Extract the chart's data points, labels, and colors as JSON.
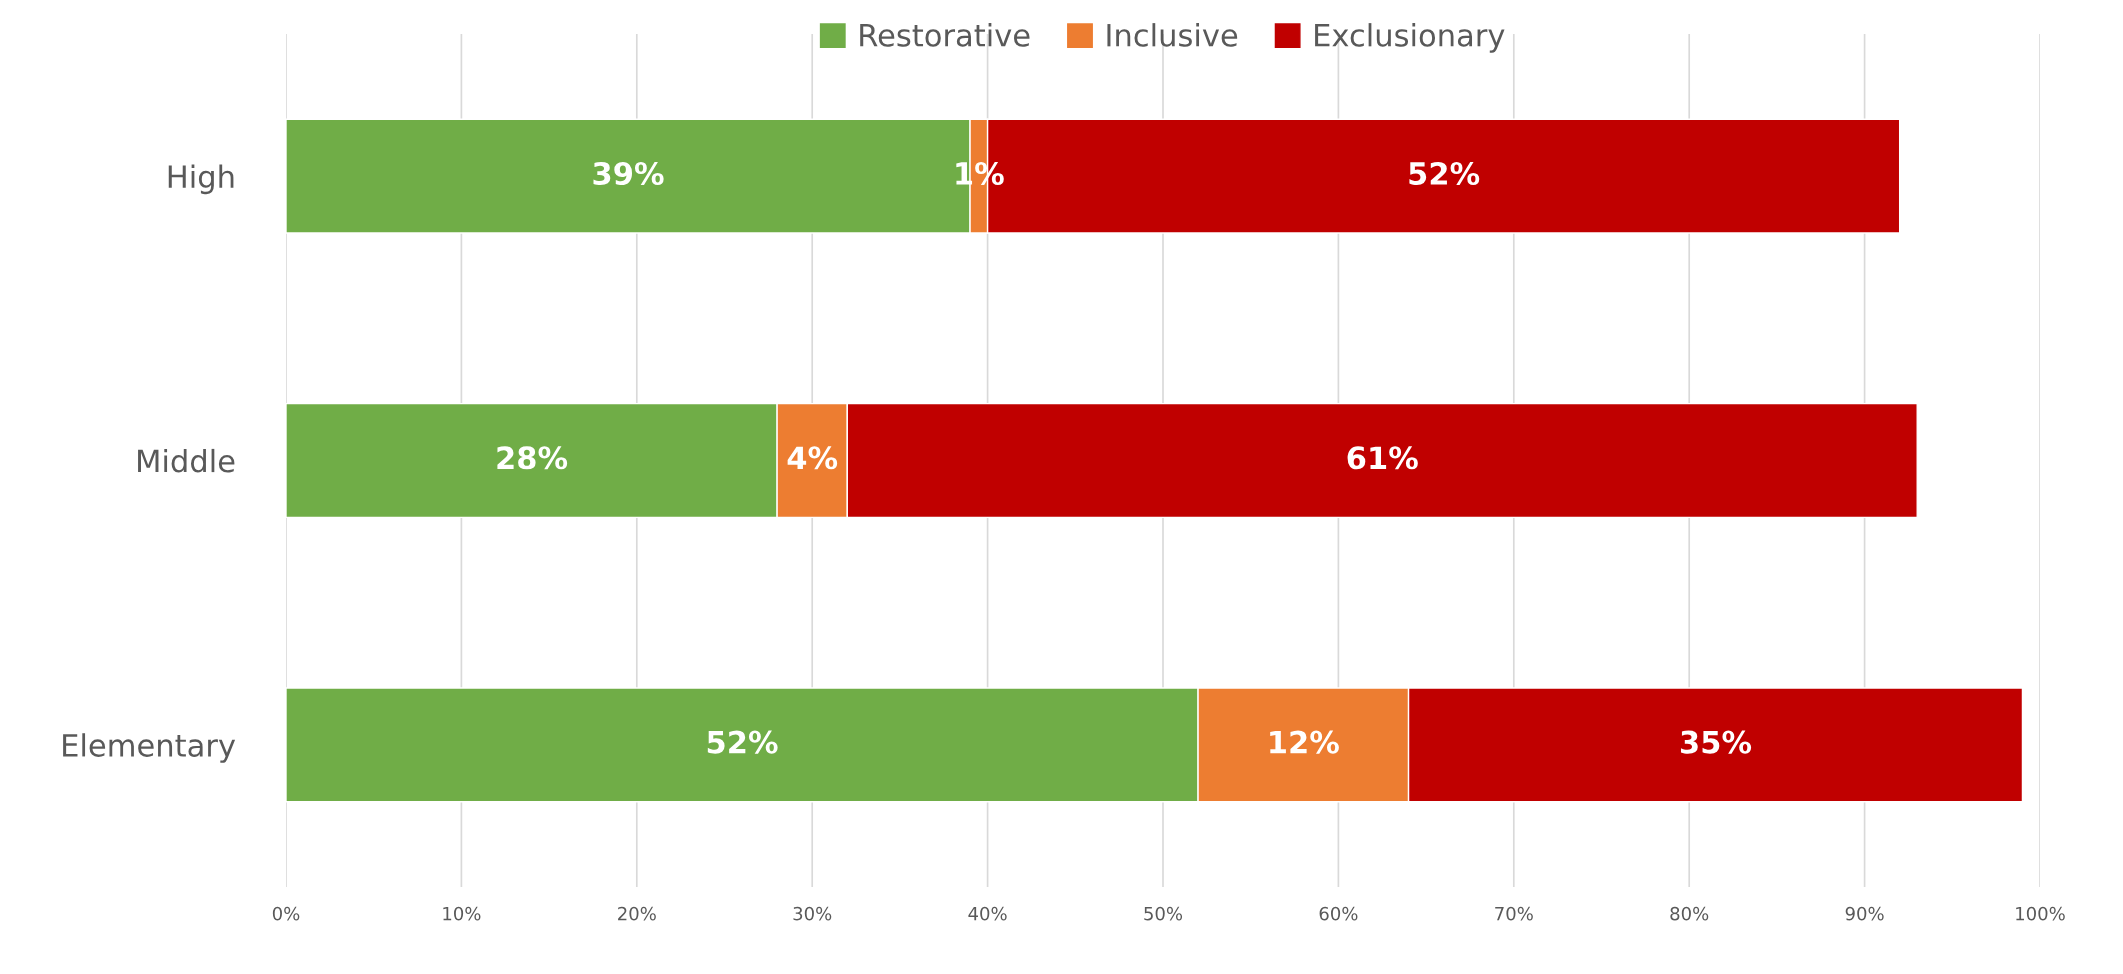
{
  "chart_data": {
    "type": "bar",
    "orientation": "horizontal",
    "stacked": true,
    "categories": [
      "High",
      "Middle",
      "Elementary"
    ],
    "series": [
      {
        "name": "Restorative",
        "color": "#70ad47",
        "values": [
          39,
          28,
          52
        ],
        "value_labels": [
          "39%",
          "28%",
          "52%"
        ]
      },
      {
        "name": "Inclusive",
        "color": "#ed7d31",
        "values": [
          1,
          4,
          12
        ],
        "value_labels": [
          "1%",
          "4%",
          "12%"
        ]
      },
      {
        "name": "Exclusionary",
        "color": "#c00000",
        "values": [
          52,
          61,
          35
        ],
        "value_labels": [
          "52%",
          "61%",
          "35%"
        ]
      }
    ],
    "xlim": [
      0,
      100
    ],
    "xticks": [
      {
        "value": 0,
        "label": "0%"
      },
      {
        "value": 10,
        "label": "10%"
      },
      {
        "value": 20,
        "label": "20%"
      },
      {
        "value": 30,
        "label": "30%"
      },
      {
        "value": 40,
        "label": "40%"
      },
      {
        "value": 50,
        "label": "50%"
      },
      {
        "value": 60,
        "label": "60%"
      },
      {
        "value": 70,
        "label": "70%"
      },
      {
        "value": 80,
        "label": "80%"
      },
      {
        "value": 90,
        "label": "90%"
      },
      {
        "value": 100,
        "label": "100%"
      }
    ],
    "grid": "x",
    "legend": "top"
  }
}
